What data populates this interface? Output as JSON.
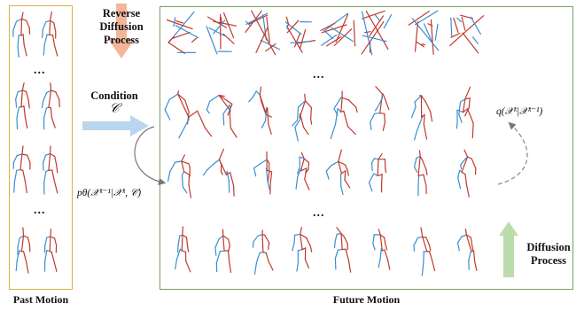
{
  "panels": {
    "past_label": "Past Motion",
    "future_label": "Future Motion"
  },
  "labels": {
    "reverse_line1": "Reverse",
    "reverse_line2": "Diffusion",
    "reverse_line3": "Process",
    "condition_line1": "Condition",
    "condition_symbol": "𝒞",
    "diffusion_line1": "Diffusion",
    "diffusion_line2": "Process"
  },
  "math": {
    "forward": "q(𝒳ᵏ|𝒳ᵏ⁻¹)",
    "reverse": "pθ(𝒳ᵏ⁻¹|𝒳ᵏ, 𝒞)"
  },
  "ellipsis": "...",
  "colors": {
    "past_border": "#d6b23f",
    "future_border": "#7aa05a",
    "limb_red": "#c0392b",
    "limb_blue": "#3a8fd0",
    "arrow_orange": "#f3b69a",
    "arrow_blue": "#b9d6ee",
    "arrow_green": "#bcdcae"
  }
}
